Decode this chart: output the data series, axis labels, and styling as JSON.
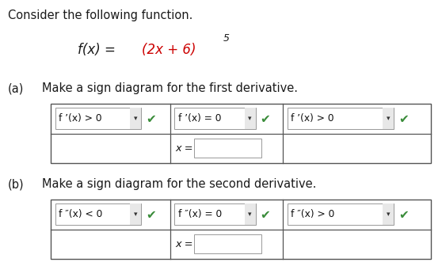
{
  "bg_color": "#ffffff",
  "text_color": "#1a1a1a",
  "red_color": "#cc0000",
  "green_color": "#3a8c3a",
  "title": "Consider the following function.",
  "func_fx": "f(x) = ",
  "func_red": "(2x + 6)",
  "func_exp": "5",
  "part_a_label": "(a)",
  "part_a_text": "Make a sign diagram for the first derivative.",
  "part_b_label": "(b)",
  "part_b_text": "Make a sign diagram for the second derivative.",
  "table_a_row1": [
    "f ’(x) > 0",
    "f ’(x) = 0",
    "f ’(x) > 0"
  ],
  "table_b_row1": [
    "f ″(x) < 0",
    "f ″(x) = 0",
    "f ″(x) > 0"
  ],
  "x_eq": "x =",
  "font_size_body": 10.5,
  "font_size_func": 12,
  "font_size_table": 8.8,
  "checkmark": "✔",
  "table_col_splits": [
    0.115,
    0.385,
    0.64,
    0.975
  ],
  "drop_arrow": "v"
}
